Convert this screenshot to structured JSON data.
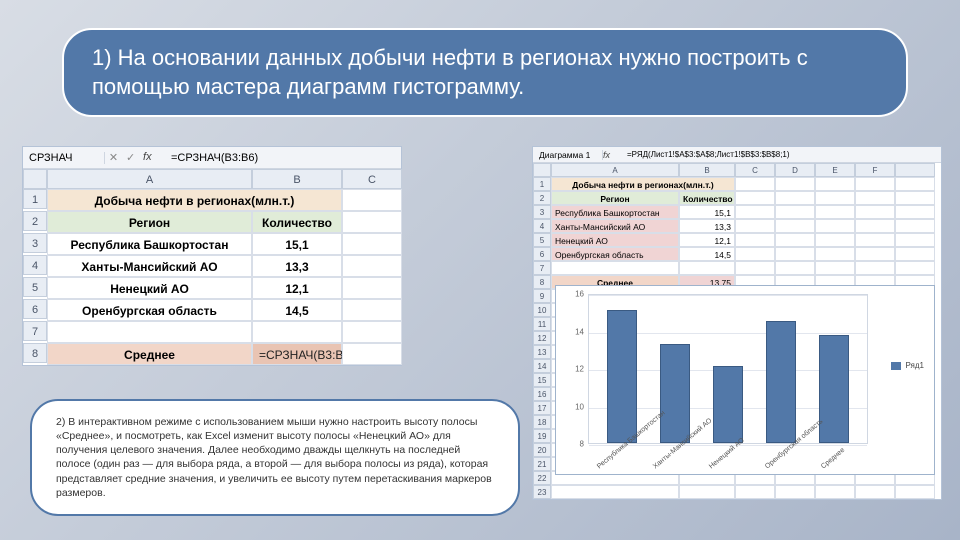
{
  "colors": {
    "accent": "#5278a8",
    "title_bg": "#f5e6d3",
    "header_bg": "#e0ecd8",
    "avg_lbl_bg": "#f2d6c8",
    "avg_val_bg": "#e9c4b3",
    "pink": "#f0d4d4",
    "grid_hdr": "#e8edf4"
  },
  "title": "1) На основании данных добычи нефти в регионах нужно построить с помощью мастера диаграмм гистограмму.",
  "footer": "2) В интерактивном режиме с использованием мыши нужно настроить высоту полосы «Среднее», и посмотреть, как Excel изменит высоту полосы «Ненецкий АО» для получения целевого значения. Далее необходимо дважды щелкнуть на последней полосе (один раз — для выбора ряда, а второй — для выбора полосы из ряда), которая представляет средние значения, и увеличить ее высоту путем перетаскивания маркеров размеров.",
  "left": {
    "namebox": "СРЗНАЧ",
    "fx_icons": [
      "✕",
      "✓",
      "fx"
    ],
    "formula": "=СРЗНАЧ(B3:B6)",
    "cols": [
      "",
      "A",
      "B",
      "C"
    ],
    "row1_title": "Добыча нефти в регионах(млн.т.)",
    "row2": {
      "a": "Регион",
      "b": "Количество"
    },
    "rows": [
      {
        "n": "3",
        "a": "Республика Башкортостан",
        "b": "15,1"
      },
      {
        "n": "4",
        "a": "Ханты-Мансийский АО",
        "b": "13,3"
      },
      {
        "n": "5",
        "a": "Ненецкий АО",
        "b": "12,1"
      },
      {
        "n": "6",
        "a": "Оренбургская область",
        "b": "14,5"
      }
    ],
    "avg": {
      "n": "8",
      "label": "Среднее",
      "formula": "=СРЗНАЧ(B3:B6)"
    }
  },
  "right": {
    "namebox": "Диаграмма 1",
    "formula": "=РЯД(Лист1!$A$3:$A$8;Лист1!$B$3:$B$8;1)",
    "cols": [
      "",
      "A",
      "B",
      "C",
      "D",
      "E",
      "F"
    ],
    "row_title": "Добыча нефти в регионах(млн.т.)",
    "row_hdr": {
      "a": "Регион",
      "b": "Количество"
    },
    "rows": [
      {
        "n": "3",
        "a": "Республика Башкортостан",
        "b": "15,1"
      },
      {
        "n": "4",
        "a": "Ханты-Мансийский АО",
        "b": "13,3"
      },
      {
        "n": "5",
        "a": "Ненецкий АО",
        "b": "12,1"
      },
      {
        "n": "6",
        "a": "Оренбургская область",
        "b": "14,5"
      }
    ],
    "avg": {
      "n": "8",
      "label": "Среднее",
      "value": "13,75"
    },
    "tail_rows": [
      "9",
      "10",
      "11",
      "12",
      "13",
      "14",
      "15",
      "16",
      "17",
      "18",
      "19",
      "20",
      "21",
      "22",
      "23"
    ]
  },
  "chart": {
    "type": "bar",
    "ylim": [
      8,
      16
    ],
    "yticks": [
      8,
      10,
      12,
      14,
      16
    ],
    "bar_color": "#5278a8",
    "bar_border": "#3a5a82",
    "grid_color": "#e2e6ee",
    "categories": [
      "Республика Башкортостан",
      "Ханты-Мансийский АО",
      "Ненецкий АО",
      "Оренбургская область",
      "Среднее"
    ],
    "values": [
      15.1,
      13.3,
      12.1,
      14.5,
      13.75
    ],
    "legend": "Ряд1"
  }
}
